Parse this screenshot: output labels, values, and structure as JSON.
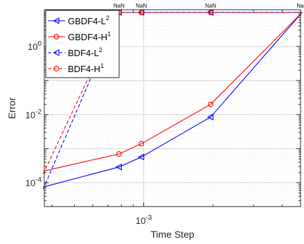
{
  "chart_data": {
    "type": "line",
    "xscale": "log",
    "yscale": "log",
    "xlabel": "Time Step",
    "ylabel": "Error",
    "xlim": [
      0.00037,
      0.0048
    ],
    "ylim": [
      2e-05,
      12
    ],
    "grid": true,
    "minor_grid": true,
    "legend_position": "top-left",
    "x_ticks": [
      {
        "value": 0.001,
        "base": "10",
        "exp": "-3"
      }
    ],
    "y_ticks": [
      {
        "value": 0.0001,
        "base": "10",
        "exp": "-4"
      },
      {
        "value": 0.01,
        "base": "10",
        "exp": "-2"
      },
      {
        "value": 1,
        "base": "10",
        "exp": "0"
      }
    ],
    "nan_value": 10,
    "nan_label": "NaN",
    "nan_x": [
      0.000781,
      0.000977,
      0.001953,
      0.00488
    ],
    "series": [
      {
        "name": "GBDF4-L",
        "sup": "2",
        "color": "#0000ff",
        "dash": "solid",
        "marker": "triangle-left",
        "x": [
          0.000366,
          0.000781,
          0.000977,
          0.001953,
          0.00488
        ],
        "y": [
          7.5e-05,
          0.00029,
          0.00057,
          0.0085,
          10
        ]
      },
      {
        "name": "GBDF4-H",
        "sup": "1",
        "color": "#ff0000",
        "dash": "solid",
        "marker": "circle",
        "x": [
          0.000366,
          0.000781,
          0.000977,
          0.001953,
          0.00488
        ],
        "y": [
          0.00022,
          0.0007,
          0.0014,
          0.02,
          10
        ]
      },
      {
        "name": "BDF4-L",
        "sup": "2",
        "color": "#0000ff",
        "dash": "dashed",
        "marker": "triangle-left",
        "x": [
          0.000366,
          0.000781,
          0.000977,
          0.001953,
          0.00488
        ],
        "y": [
          6.6e-05,
          10,
          10,
          10,
          10
        ]
      },
      {
        "name": "BDF4-H",
        "sup": "1",
        "color": "#ff0000",
        "dash": "dashed",
        "marker": "circle",
        "x": [
          0.000366,
          0.000781,
          0.000977,
          0.001953,
          0.00488
        ],
        "y": [
          0.00018,
          10,
          10,
          10,
          10
        ]
      }
    ]
  }
}
